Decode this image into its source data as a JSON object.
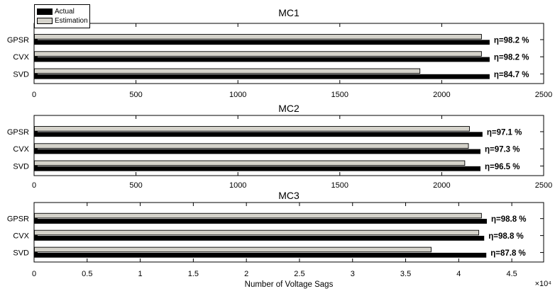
{
  "figure": {
    "background": "#ffffff",
    "axis_color": "#000000"
  },
  "chart_data": [
    {
      "type": "bar",
      "orientation": "horizontal",
      "title": "MC1",
      "categories": [
        "GPSR",
        "CVX",
        "SVD"
      ],
      "series": [
        {
          "name": "Actual",
          "color": "#000000",
          "values": [
            2235,
            2235,
            2235
          ]
        },
        {
          "name": "Estimation",
          "color": "#d5d3cb",
          "values": [
            2195,
            2195,
            1893
          ]
        }
      ],
      "annotations": [
        "η=98.2 %",
        "η=98.2 %",
        "η=84.7 %"
      ],
      "xlim": [
        0,
        2500
      ],
      "xticks": [
        0,
        500,
        1000,
        1500,
        2000,
        2500
      ],
      "xtick_labels": [
        "0",
        "500",
        "1000",
        "1500",
        "2000",
        "2500"
      ],
      "legend_position": "top-left",
      "grid": false
    },
    {
      "type": "bar",
      "orientation": "horizontal",
      "title": "MC2",
      "categories": [
        "GPSR",
        "CVX",
        "SVD"
      ],
      "series": [
        {
          "name": "Actual",
          "color": "#000000",
          "values": [
            2200,
            2190,
            2190
          ]
        },
        {
          "name": "Estimation",
          "color": "#d5d3cb",
          "values": [
            2136,
            2131,
            2113
          ]
        }
      ],
      "annotations": [
        "η=97.1 %",
        "η=97.3 %",
        "η=96.5 %"
      ],
      "xlim": [
        0,
        2500
      ],
      "xticks": [
        0,
        500,
        1000,
        1500,
        2000,
        2500
      ],
      "xtick_labels": [
        "0",
        "500",
        "1000",
        "1500",
        "2000",
        "2500"
      ],
      "grid": false
    },
    {
      "type": "bar",
      "orientation": "horizontal",
      "title": "MC3",
      "categories": [
        "GPSR",
        "CVX",
        "SVD"
      ],
      "series": [
        {
          "name": "Actual",
          "color": "#000000",
          "values": [
            42650,
            42400,
            42600
          ]
        },
        {
          "name": "Estimation",
          "color": "#d5d3cb",
          "values": [
            42140,
            41890,
            37400
          ]
        }
      ],
      "annotations": [
        "η=98.8 %",
        "η=98.8 %",
        "η=87.8 %"
      ],
      "xlim": [
        0,
        48000
      ],
      "xticks": [
        0,
        5000,
        10000,
        15000,
        20000,
        25000,
        30000,
        35000,
        40000,
        45000
      ],
      "xtick_labels": [
        "0",
        "0.5",
        "1",
        "1.5",
        "2",
        "2.5",
        "3",
        "3.5",
        "4",
        "4.5"
      ],
      "x_multiplier": "×10⁴",
      "xlabel": "Number of Voltage Sags",
      "grid": false
    }
  ]
}
